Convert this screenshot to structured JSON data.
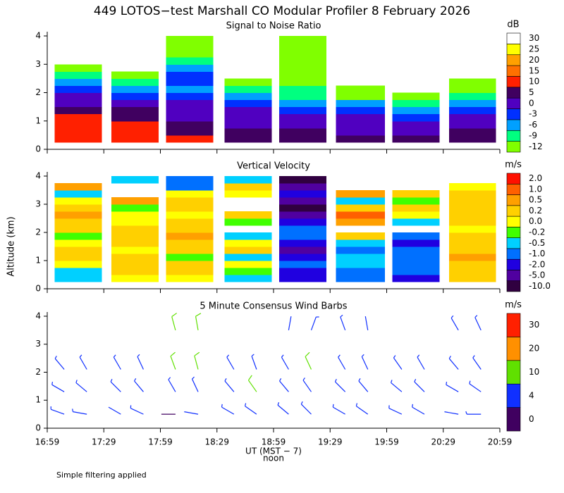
{
  "title": "449 LOTOS−test Marshall CO Modular Profiler  8 February 2026",
  "y_label": "Altitude (km)",
  "footnote": "Simple filtering applied",
  "chart_data": [
    {
      "type": "heatmap",
      "title": "Signal to Noise Ratio",
      "x_start": [
        "17:03",
        "17:33",
        "18:02",
        "18:33",
        "19:02",
        "19:32",
        "20:02",
        "20:32"
      ],
      "x_end": [
        "17:28",
        "17:58",
        "18:27",
        "18:58",
        "19:27",
        "19:58",
        "20:27",
        "20:57"
      ],
      "y_bins": [
        0.25,
        0.5,
        0.75,
        1.0,
        1.25,
        1.5,
        1.75,
        2.0,
        2.25,
        2.5,
        2.75,
        3.0,
        3.25,
        3.5,
        3.75,
        4.0
      ],
      "values": [
        [
          12,
          12,
          11,
          11,
          6,
          4,
          2,
          -3,
          -6,
          -9,
          -12,
          null,
          null,
          null,
          null
        ],
        [
          11,
          11,
          10,
          8,
          5,
          2,
          -2,
          -4,
          -8,
          -11,
          null,
          null,
          null,
          null,
          null
        ],
        [
          10,
          8,
          6,
          4,
          2,
          0,
          -2,
          -4,
          -3,
          -2,
          -5,
          -8,
          -10,
          -12,
          -12
        ],
        [
          6,
          5,
          4,
          3,
          1,
          -2,
          -5,
          -9,
          -12,
          null,
          null,
          null,
          null,
          null,
          null
        ],
        [
          6,
          5,
          3,
          1,
          -2,
          -5,
          -7,
          -9,
          -10,
          -11,
          -12,
          -12,
          -12,
          -12,
          -12
        ],
        [
          5,
          4,
          2,
          0,
          -3,
          -6,
          -10,
          -12,
          null,
          null,
          null,
          null,
          null,
          null,
          null
        ],
        [
          5,
          4,
          2,
          -1,
          -4,
          -7,
          -11,
          null,
          null,
          null,
          null,
          null,
          null,
          null,
          null
        ],
        [
          8,
          6,
          3,
          1,
          -2,
          -5,
          -8,
          -10,
          -12,
          null,
          null,
          null,
          null,
          null,
          null
        ]
      ],
      "ylim": [
        0,
        4.1
      ],
      "yticks": [
        0,
        1,
        2,
        3,
        4
      ],
      "colorbar": {
        "label": "dB",
        "ticks": [
          -12,
          -9,
          -6,
          -3,
          0,
          5,
          10,
          15,
          20,
          25,
          30
        ],
        "colors": [
          "#80ff00",
          "#00ff80",
          "#00a0ff",
          "#0030ff",
          "#5000c0",
          "#400060",
          "#ff2000",
          "#ff7000",
          "#ffa000",
          "#ffff00",
          "#ffffff"
        ]
      }
    },
    {
      "type": "heatmap",
      "title": "Vertical Velocity",
      "x_start": [
        "17:03",
        "17:33",
        "18:02",
        "18:33",
        "19:02",
        "19:32",
        "20:02",
        "20:32"
      ],
      "x_end": [
        "17:28",
        "17:58",
        "18:27",
        "18:58",
        "19:27",
        "19:58",
        "20:27",
        "20:57"
      ],
      "y_bins": [
        0.25,
        0.5,
        0.75,
        1.0,
        1.25,
        1.5,
        1.75,
        2.0,
        2.25,
        2.5,
        2.75,
        3.0,
        3.25,
        3.5,
        3.75,
        4.0
      ],
      "values": [
        [
          -0.4,
          -0.3,
          0.1,
          0.3,
          0.2,
          0.0,
          -0.1,
          0.3,
          0.3,
          0.5,
          0.2,
          0.1,
          -0.3,
          0.6,
          null
        ],
        [
          0.1,
          0.2,
          0.3,
          0.2,
          0.1,
          0.3,
          0.4,
          0.2,
          0.1,
          0.0,
          -0.1,
          0.5,
          null,
          null,
          -0.4
        ],
        [
          0.1,
          0.3,
          0.2,
          -0.1,
          0.3,
          0.4,
          0.5,
          0.3,
          0.2,
          0.1,
          0.3,
          0.4,
          0.1,
          -0.6,
          -0.6
        ],
        [
          -0.3,
          -0.1,
          0.1,
          -0.3,
          0.2,
          0.0,
          -0.4,
          null,
          -0.2,
          0.3,
          null,
          null,
          0.1,
          0.2,
          -0.3
        ],
        [
          -1.5,
          -1.2,
          -0.8,
          -1.5,
          -2.5,
          -1.5,
          -0.8,
          -0.6,
          -1.2,
          -2.5,
          -5.5,
          -3,
          -1.2,
          -2.5,
          -6
        ],
        [
          -0.8,
          -0.6,
          -0.5,
          -0.4,
          -0.6,
          -0.3,
          0.3,
          null,
          0.5,
          1.5,
          0.3,
          -0.3,
          0.6,
          null,
          null
        ],
        [
          -1.2,
          -1.0,
          -0.7,
          -0.6,
          -0.8,
          -1.1,
          -0.6,
          null,
          -0.3,
          0.1,
          0.3,
          -0.2,
          0.3,
          null,
          null
        ],
        [
          0.3,
          0.4,
          0.2,
          0.5,
          0.3,
          0.4,
          0.2,
          0.1,
          0.3,
          0.2,
          0.4,
          0.3,
          0.2,
          0.0,
          null
        ]
      ],
      "ylim": [
        0,
        4.1
      ],
      "yticks": [
        0,
        1,
        2,
        3,
        4
      ],
      "colorbar": {
        "label": "m/s",
        "ticks": [
          {
            "value": -10,
            "label": "-10.0"
          },
          {
            "value": -5,
            "label": "-5.0"
          },
          {
            "value": -2,
            "label": "-2.0"
          },
          {
            "value": -1,
            "label": "-1.0"
          },
          -0.5,
          -0.2,
          {
            "value": 0,
            "label": "0.0"
          },
          0.2,
          0.5,
          {
            "value": 1,
            "label": "1.0"
          },
          {
            "value": 2,
            "label": "2.0"
          }
        ],
        "colors": [
          "#300040",
          "#5000a0",
          "#2000e0",
          "#0070ff",
          "#00d0ff",
          "#40ff00",
          "#ffff00",
          "#ffd000",
          "#ffa000",
          "#ff6000",
          "#ff1000"
        ]
      }
    },
    {
      "type": "barbs",
      "title": "5 Minute Consensus Wind Barbs",
      "time": [
        "17:08",
        "17:08",
        "17:08",
        "17:20",
        "17:20",
        "17:20",
        "17:38",
        "17:38",
        "17:38",
        "17:50",
        "17:50",
        "17:50",
        "18:07",
        "18:07",
        "18:07",
        "18:07",
        "18:19",
        "18:19",
        "18:19",
        "18:19",
        "18:38",
        "18:38",
        "18:38",
        "18:50",
        "18:50",
        "18:50",
        "19:07",
        "19:07",
        "19:07",
        "19:07",
        "19:19",
        "19:19",
        "19:19",
        "19:19",
        "19:37",
        "19:37",
        "19:37",
        "19:37",
        "19:49",
        "19:49",
        "19:49",
        "19:49",
        "20:07",
        "20:07",
        "20:07",
        "20:19",
        "20:19",
        "20:19",
        "20:37",
        "20:37",
        "20:37",
        "20:37",
        "20:49",
        "20:49",
        "20:49",
        "20:49"
      ],
      "altitude": [
        0.5,
        1.3,
        2.1,
        0.5,
        1.3,
        2.1,
        0.5,
        1.3,
        2.1,
        0.5,
        1.3,
        2.1,
        0.5,
        1.3,
        2.1,
        3.5,
        0.5,
        1.3,
        2.1,
        3.5,
        0.5,
        1.3,
        2.1,
        0.5,
        1.3,
        2.1,
        0.5,
        1.3,
        2.1,
        3.5,
        0.5,
        1.3,
        2.1,
        3.5,
        0.5,
        1.3,
        2.1,
        3.5,
        0.5,
        1.3,
        2.1,
        3.5,
        0.5,
        1.3,
        2.1,
        0.5,
        1.3,
        2.1,
        0.5,
        1.3,
        2.1,
        3.5,
        0.5,
        1.3,
        2.1,
        3.5
      ],
      "speed": [
        6,
        5,
        8,
        7,
        6,
        9,
        4,
        6,
        7,
        5,
        7,
        8,
        3,
        8,
        10,
        12,
        4,
        9,
        11,
        13,
        6,
        9,
        7,
        7,
        10,
        6,
        5,
        8,
        9,
        4,
        6,
        9,
        10,
        5,
        7,
        8,
        6,
        5,
        8,
        9,
        5,
        4,
        6,
        8,
        7,
        7,
        9,
        6,
        4,
        6,
        8,
        7,
        5,
        7,
        9,
        6
      ],
      "direction": [
        290,
        300,
        320,
        280,
        310,
        330,
        300,
        315,
        330,
        295,
        320,
        335,
        270,
        330,
        340,
        345,
        280,
        335,
        345,
        350,
        300,
        320,
        330,
        305,
        325,
        340,
        310,
        320,
        330,
        10,
        315,
        325,
        335,
        20,
        300,
        315,
        330,
        340,
        305,
        320,
        335,
        350,
        295,
        310,
        325,
        300,
        315,
        330,
        280,
        300,
        320,
        330,
        270,
        305,
        325,
        335
      ],
      "xlim": [
        "16:59",
        "20:59"
      ],
      "xticks": [
        "16:59",
        "17:29",
        "17:59",
        "18:29",
        "18:59",
        "19:29",
        "19:59",
        "20:29",
        "20:59"
      ],
      "x_label": "UT  (MST − 7)",
      "x_sublabel": "noon",
      "ylim": [
        0,
        4.1
      ],
      "yticks": [
        0,
        1,
        2,
        3,
        4
      ],
      "colorbar": {
        "label": "m/s",
        "ticks": [
          0,
          4,
          10,
          20,
          30
        ],
        "colors": [
          "#400060",
          "#1030ff",
          "#60e000",
          "#ff9000",
          "#ff2000"
        ]
      }
    }
  ]
}
